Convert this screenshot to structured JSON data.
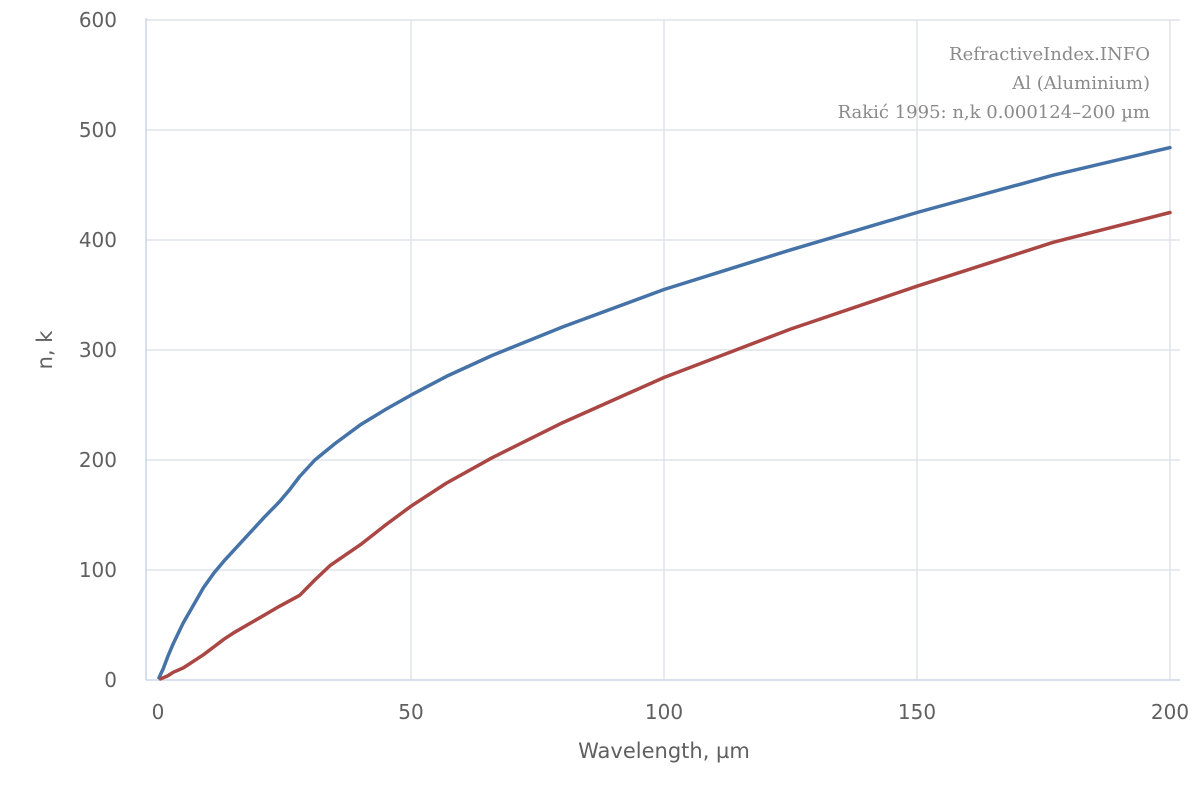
{
  "chart_data": {
    "type": "line",
    "xlabel": "Wavelength, µm",
    "ylabel": "n, k",
    "xlim": [
      0,
      200
    ],
    "ylim": [
      0,
      600
    ],
    "x_ticks": [
      0,
      50,
      100,
      150,
      200
    ],
    "y_ticks": [
      0,
      100,
      200,
      300,
      400,
      500,
      600
    ],
    "grid": true,
    "annotations": [
      "RefractiveIndex.INFO",
      "Al (Aluminium)",
      "Rakić 1995: n,k 0.000124–200 µm"
    ],
    "series": [
      {
        "id": "n",
        "color": "#4572a7",
        "x": [
          0.2,
          0.5,
          1,
          2,
          3,
          5,
          7,
          9,
          11,
          13,
          15,
          18,
          21,
          24,
          26,
          28,
          31,
          35,
          40,
          45,
          50,
          57,
          66,
          80,
          100,
          125,
          150,
          177,
          200
        ],
        "y": [
          2,
          5,
          10,
          22,
          33,
          52,
          68,
          84,
          97,
          108,
          118,
          133,
          148,
          162,
          173,
          185,
          200,
          215,
          232,
          246,
          259,
          276,
          295,
          321,
          355,
          391,
          425,
          459,
          484
        ]
      },
      {
        "id": "k",
        "color": "#aa4643",
        "x": [
          0.5,
          1,
          2,
          3,
          5,
          7,
          9,
          11,
          13,
          15,
          18,
          21,
          24,
          26,
          28,
          31,
          34,
          40,
          45,
          50,
          57,
          66,
          80,
          100,
          125,
          150,
          177,
          200
        ],
        "y": [
          1,
          2,
          4,
          7,
          11,
          17,
          23,
          30,
          37,
          43,
          51,
          59,
          67,
          72,
          77,
          91,
          104,
          123,
          141,
          158,
          179,
          202,
          234,
          275,
          319,
          358,
          398,
          425
        ]
      }
    ]
  }
}
